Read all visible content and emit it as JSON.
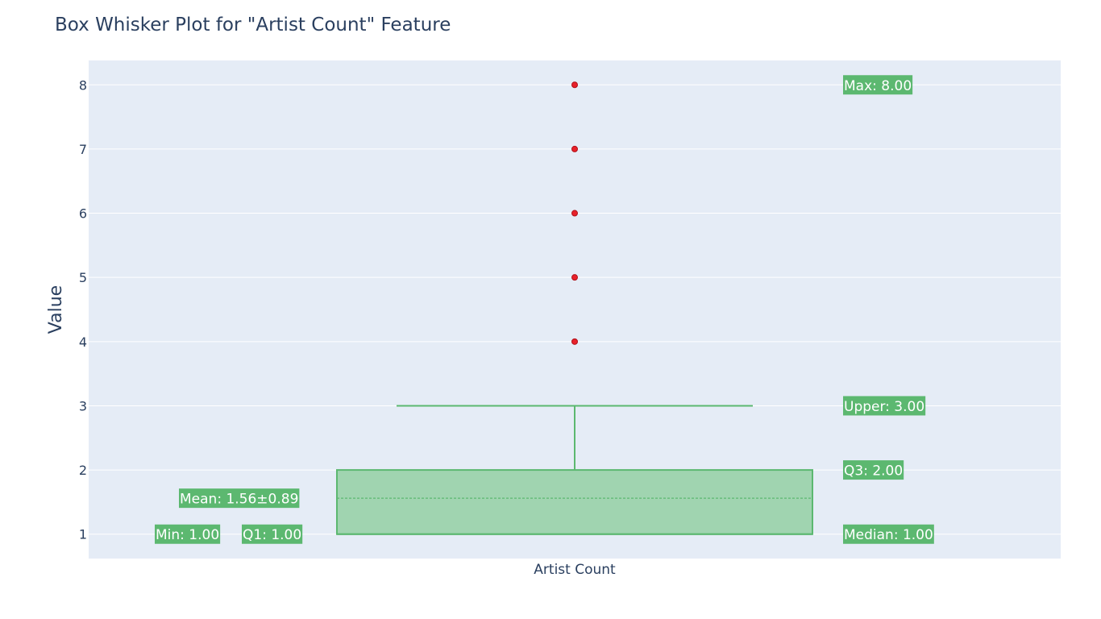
{
  "chart_data": {
    "type": "box",
    "title": "Box Whisker Plot for \"Artist Count\" Feature",
    "xlabel": "",
    "ylabel": "Value",
    "category": "Artist Count",
    "ylim": [
      0.62,
      8.38
    ],
    "yticks": [
      1,
      2,
      3,
      4,
      5,
      6,
      7,
      8
    ],
    "grid": true,
    "stats": {
      "min": 1.0,
      "q1": 1.0,
      "median": 1.0,
      "q3": 2.0,
      "upper_fence": 3.0,
      "max": 8.0,
      "mean": 1.56,
      "sd": 0.89
    },
    "outliers": [
      4,
      5,
      6,
      7,
      8
    ],
    "annotations": {
      "max": "Max: 8.00",
      "upper": "Upper: 3.00",
      "q3": "Q3: 2.00",
      "median": "Median: 1.00",
      "mean": "Mean: 1.56±0.89",
      "min": "Min: 1.00",
      "q1": "Q1: 1.00"
    },
    "colors": {
      "plot_bg": "#e5ecf6",
      "grid": "#ffffff",
      "box_line": "#5cb870",
      "box_fill": "#a0d4b0",
      "outlier": "#e8212b",
      "annotation_bg": "#5cb870",
      "text": "#2a3f5f"
    }
  }
}
